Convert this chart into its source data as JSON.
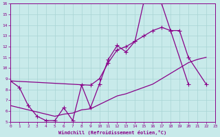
{
  "bg_color": "#c8eaea",
  "grid_color": "#a8d4d4",
  "line_color": "#880088",
  "xlabel": "Windchill (Refroidissement éolien,°C)",
  "xlim": [
    0,
    23
  ],
  "ylim": [
    5,
    16
  ],
  "xticks": [
    0,
    1,
    2,
    3,
    4,
    5,
    6,
    7,
    8,
    9,
    10,
    11,
    12,
    13,
    14,
    15,
    16,
    17,
    18,
    19,
    20,
    21,
    22,
    23
  ],
  "yticks": [
    5,
    6,
    7,
    8,
    9,
    10,
    11,
    12,
    13,
    14,
    15,
    16
  ],
  "curve_zigzag_x": [
    0,
    1,
    2,
    3,
    4,
    5,
    6,
    7,
    8,
    9,
    10,
    11,
    12,
    13,
    14,
    15,
    16,
    17,
    18,
    20
  ],
  "curve_zigzag_y": [
    8.8,
    8.2,
    6.5,
    5.5,
    5.1,
    5.1,
    6.3,
    5.1,
    8.4,
    6.3,
    8.5,
    10.8,
    12.1,
    11.5,
    12.5,
    16.2,
    16.2,
    16.0,
    13.5,
    8.5
  ],
  "curve_upper_x": [
    0,
    9,
    10,
    11,
    12,
    13,
    14,
    15,
    16,
    17,
    18,
    19,
    20,
    22
  ],
  "curve_upper_y": [
    8.8,
    8.4,
    9.0,
    10.5,
    11.7,
    12.0,
    12.5,
    13.0,
    13.5,
    13.8,
    13.5,
    13.5,
    11.0,
    8.5
  ],
  "curve_lower_x": [
    0,
    1,
    2,
    3,
    4,
    5,
    6,
    7,
    8,
    9,
    10,
    11,
    12,
    13,
    14,
    15,
    16,
    17,
    18,
    19,
    20,
    21,
    22
  ],
  "curve_lower_y": [
    6.5,
    6.3,
    6.1,
    5.9,
    5.7,
    5.5,
    5.7,
    5.8,
    6.1,
    6.2,
    6.6,
    7.0,
    7.4,
    7.6,
    7.9,
    8.2,
    8.5,
    9.0,
    9.5,
    10.0,
    10.5,
    10.8,
    11.0
  ]
}
